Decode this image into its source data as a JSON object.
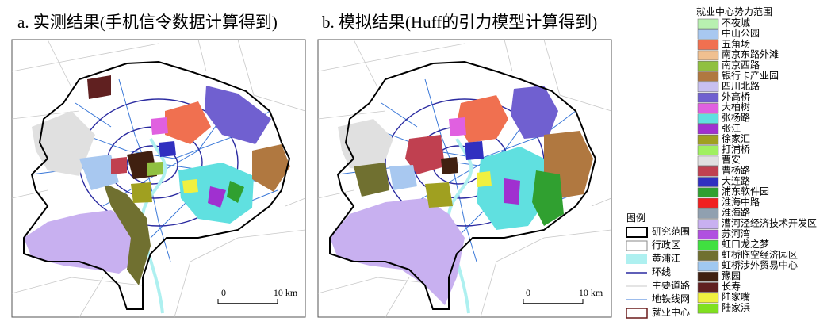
{
  "panels": [
    {
      "title": "a. 实测结果(手机信令数据计算得到)",
      "scale_labels": [
        "0",
        "10 km"
      ]
    },
    {
      "title": "b. 模拟结果(Huff的引力模型计算得到)",
      "scale_labels": [
        "0",
        "10 km"
      ]
    }
  ],
  "legend": {
    "title": "图例",
    "items": [
      "研究范围",
      "行政区",
      "黄浦江",
      "环线",
      "主要道路",
      "地铁线网",
      "就业中心"
    ]
  },
  "influence_legend": {
    "title": "就业中心势力范围",
    "items": [
      {
        "name": "不夜城",
        "color": "#b8f0b0"
      },
      {
        "name": "中山公园",
        "color": "#a8c8f0"
      },
      {
        "name": "五角场",
        "color": "#f07050"
      },
      {
        "name": "南京东路外滩",
        "color": "#f0c090"
      },
      {
        "name": "南京西路",
        "color": "#90c040"
      },
      {
        "name": "银行卡产业园",
        "color": "#b07840"
      },
      {
        "name": "四川北路",
        "color": "#c8c0f0"
      },
      {
        "name": "外高桥",
        "color": "#7060d0"
      },
      {
        "name": "大柏树",
        "color": "#e060e0"
      },
      {
        "name": "张杨路",
        "color": "#60e0e0"
      },
      {
        "name": "张江",
        "color": "#a030d0"
      },
      {
        "name": "徐家汇",
        "color": "#a0a020"
      },
      {
        "name": "打浦桥",
        "color": "#a0f060"
      },
      {
        "name": "曹安",
        "color": "#e0e0e0"
      },
      {
        "name": "曹杨路",
        "color": "#c04050"
      },
      {
        "name": "大连路",
        "color": "#3030c0"
      },
      {
        "name": "浦东软件园",
        "color": "#30a030"
      },
      {
        "name": "淮海中路",
        "color": "#f02020"
      },
      {
        "name": "淮海路",
        "color": "#90a0b0"
      },
      {
        "name": "漕河泾经济技术开发区",
        "color": "#c8b0f0"
      },
      {
        "name": "苏河湾",
        "color": "#b050e0"
      },
      {
        "name": "虹口龙之梦",
        "color": "#40e040"
      },
      {
        "name": "虹桥临空经济园区",
        "color": "#707030"
      },
      {
        "name": "虹桥涉外贸易中心",
        "color": "#a0c8f0"
      },
      {
        "name": "豫园",
        "color": "#402010"
      },
      {
        "name": "长寿",
        "color": "#602020"
      },
      {
        "name": "陆家嘴",
        "color": "#f0f040"
      },
      {
        "name": "陆家浜",
        "color": "#80e020"
      }
    ]
  }
}
